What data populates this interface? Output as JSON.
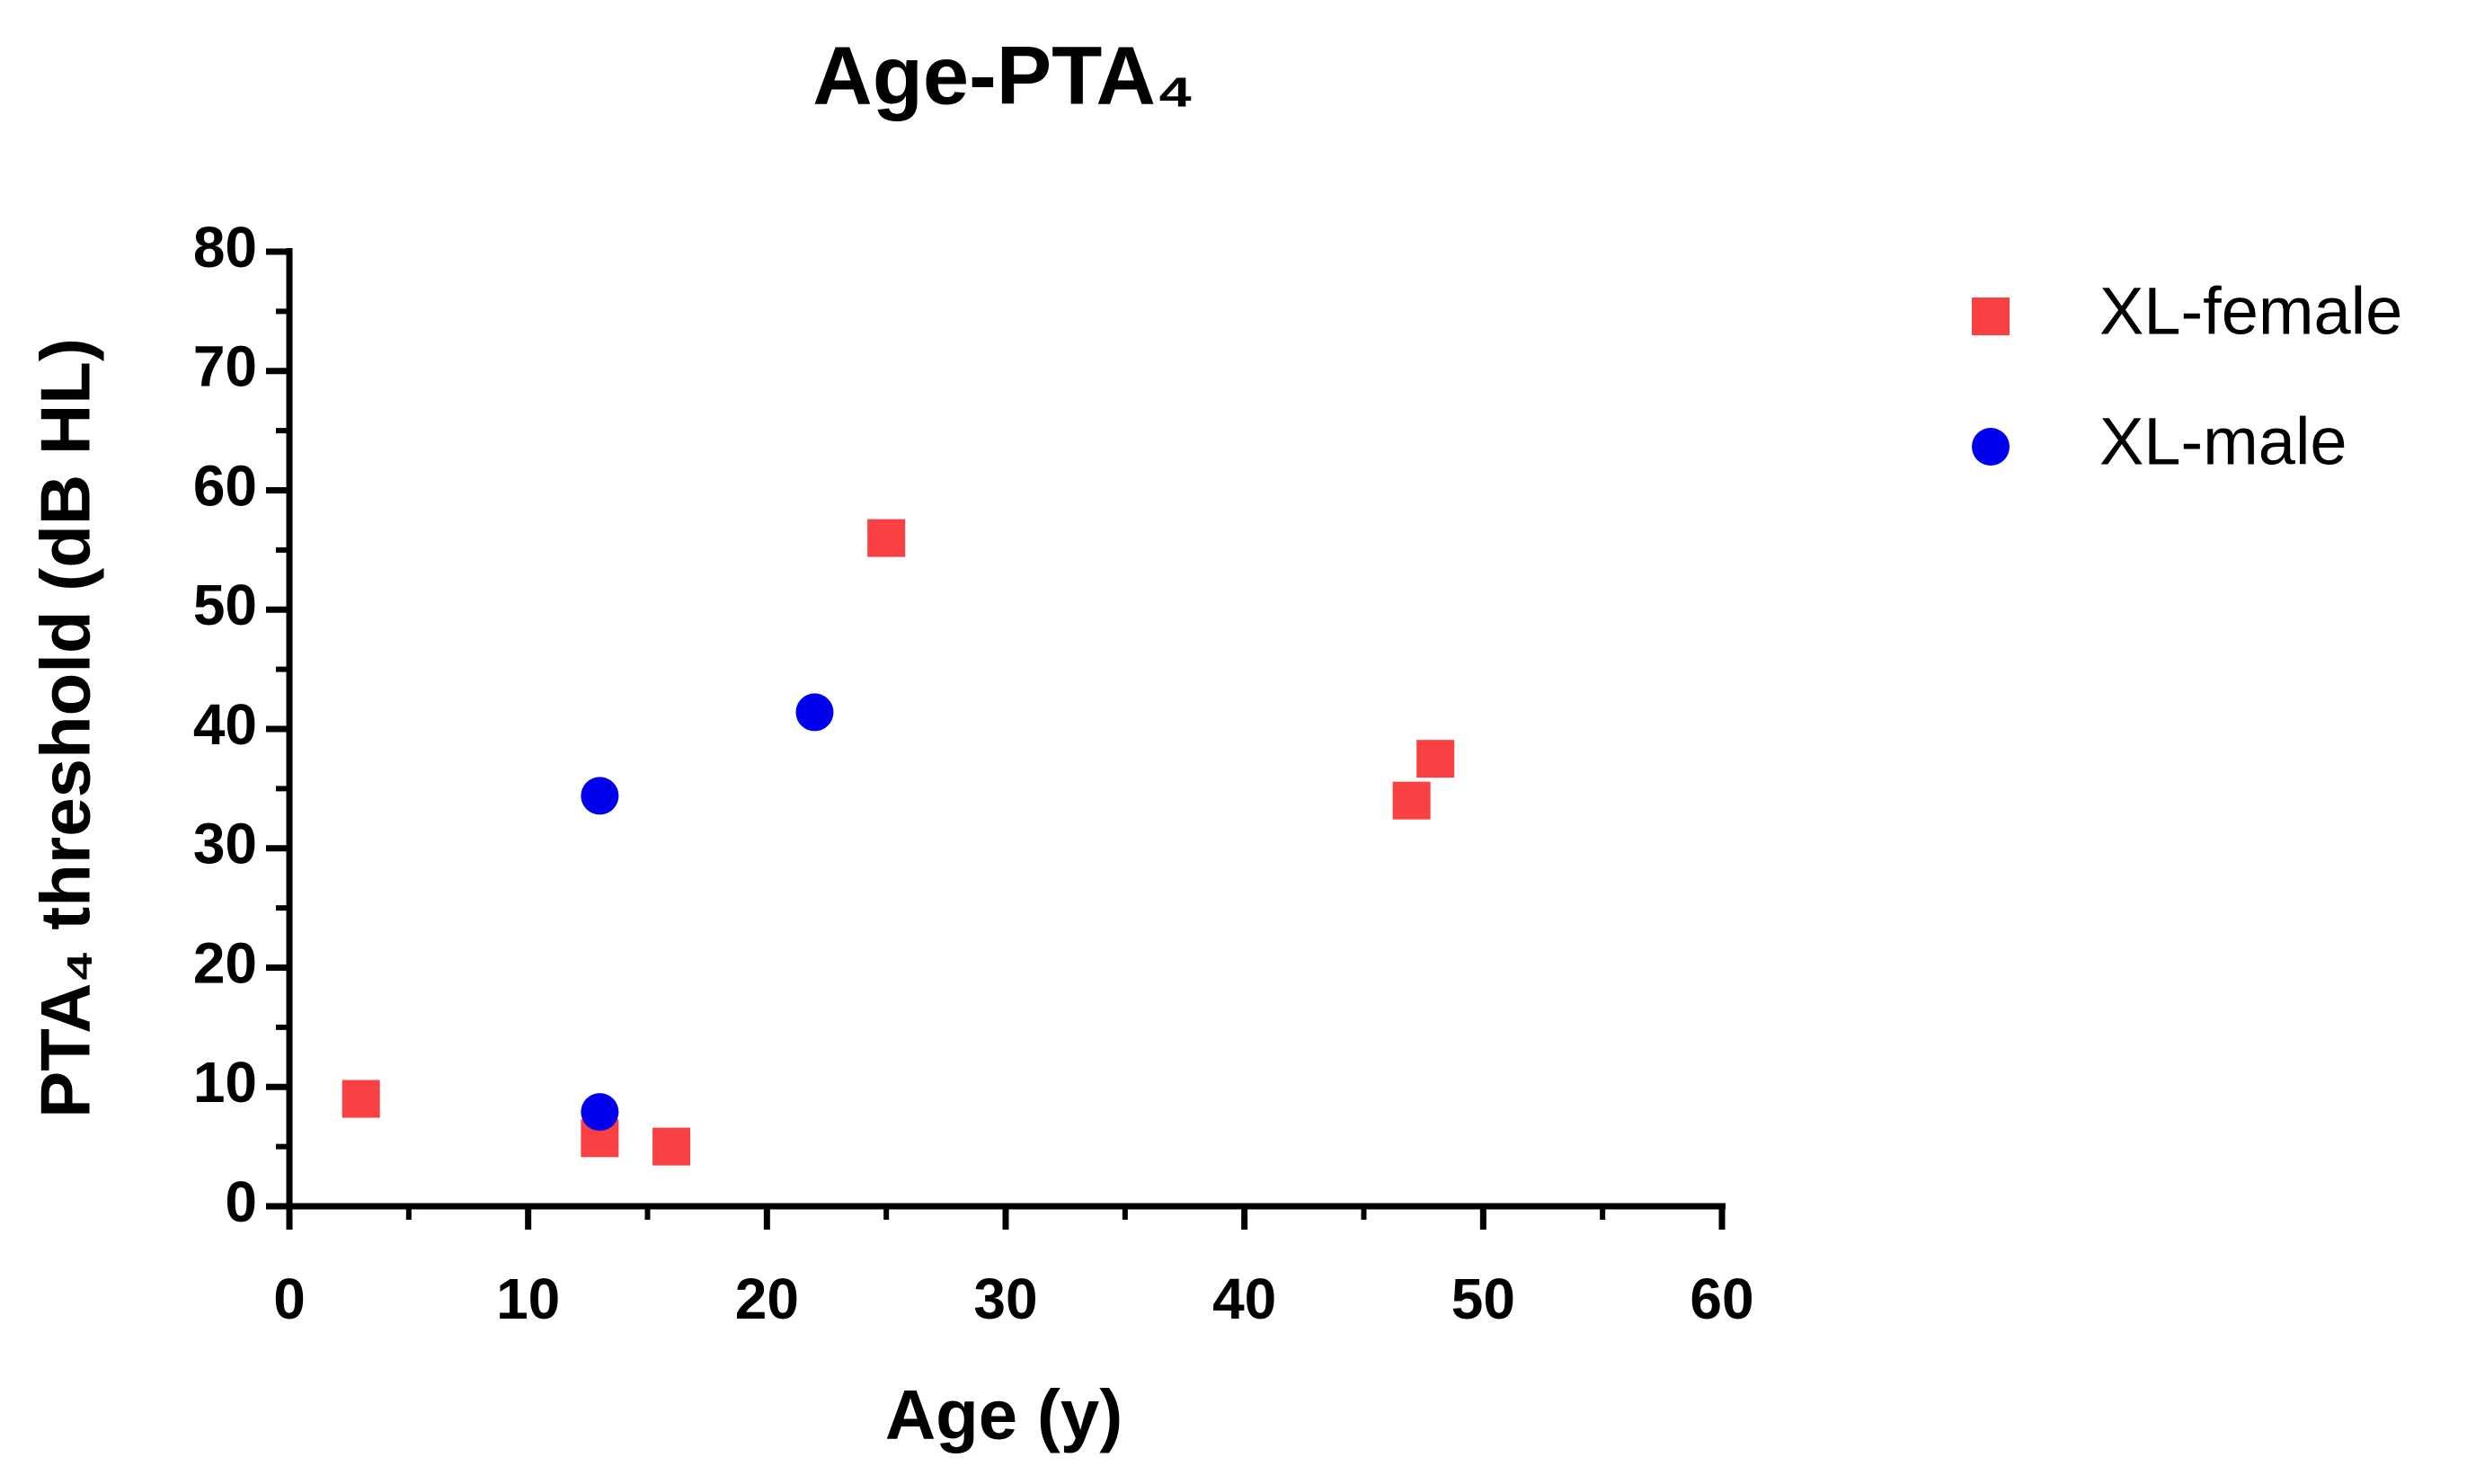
{
  "chart_data": {
    "type": "scatter",
    "title": "Age-PTA₄",
    "x_label": "Age  (y)",
    "y_label": "PTA₄ threshold (dB HL)",
    "xlim": [
      0,
      60
    ],
    "xticks": [
      0,
      10,
      20,
      30,
      40,
      50,
      60
    ],
    "xminorticks": [
      5,
      15,
      25,
      35,
      45,
      55
    ],
    "ylim": [
      0,
      80
    ],
    "yticks": [
      0,
      10,
      20,
      30,
      40,
      50,
      60,
      70,
      80
    ],
    "yminorticks": [
      5,
      15,
      25,
      35,
      45,
      55,
      65,
      75
    ],
    "grid": false,
    "legend": "right",
    "series": [
      {
        "name": "XL-female",
        "color": "#f94144",
        "marker": "square",
        "x": [
          3,
          13,
          16,
          25,
          47,
          48
        ],
        "values": [
          9,
          5.7,
          5,
          56,
          34,
          37.5
        ]
      },
      {
        "name": "XL-male",
        "color": "#0000ee",
        "marker": "circle",
        "x": [
          13,
          22,
          13
        ],
        "values": [
          34.4,
          41.4,
          7.9
        ]
      }
    ]
  }
}
